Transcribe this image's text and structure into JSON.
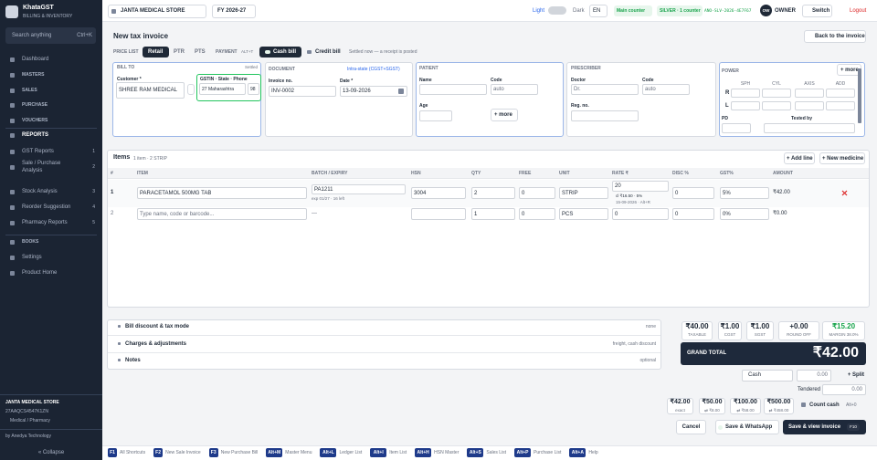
{
  "sidebar": {
    "brand": "KhataGST",
    "tagline": "BILLING & INVENTORY",
    "search": "Search anything",
    "search_shortcut": "Ctrl+K",
    "nav": [
      {
        "label": "Dashboard"
      },
      {
        "label": "MASTERS"
      },
      {
        "label": "SALES"
      },
      {
        "label": "PURCHASE"
      },
      {
        "label": "VOUCHERS"
      },
      {
        "label": "REPORTS"
      },
      {
        "label": "GST Reports",
        "key": "1"
      },
      {
        "label": "Sale / Purchase Analysis",
        "key": "2"
      },
      {
        "label": "Stock Analysis",
        "key": "3"
      },
      {
        "label": "Reorder Suggestion",
        "key": "4"
      },
      {
        "label": "Pharmacy Reports",
        "key": "5"
      },
      {
        "label": "BOOKS"
      },
      {
        "label": "Settings"
      },
      {
        "label": "Product Home"
      }
    ],
    "store_name": "JANTA MEDICAL STORE",
    "store_gstin": "27AAQCS4547K1ZN",
    "store_type": "Medical / Pharmacy",
    "credit": "by Anedya Technology",
    "collapse": "« Collapse"
  },
  "topbar": {
    "store": "JANTA MEDICAL STORE",
    "fy": "FY 2026-27",
    "theme_light": "Light",
    "theme_dark": "Dark",
    "language": "EN",
    "counter": "Main counter",
    "plan": "SILVER · 1 counter",
    "license": "ANO-SLV-2026-4E7F67",
    "avatar": "OW",
    "role": "OWNER",
    "switch": "Switch",
    "logout": "Logout"
  },
  "invoice": {
    "title": "New tax invoice",
    "back": "Back to the invoice",
    "price_list_label": "PRICE LIST",
    "price_lists": [
      "Retail",
      "PTR",
      "PTS"
    ],
    "payment_label": "PAYMENT",
    "payment_shortcut": "ALT+T",
    "payment_modes": [
      "Cash bill",
      "Credit bill"
    ],
    "payment_note": "Settled now — a receipt is posted"
  },
  "bill_to": {
    "title": "BILL TO",
    "status": "Settled",
    "customer_label": "Customer *",
    "customer": "SHREE RAM MEDICAL",
    "gstin_label": "GSTIN · State · Phone",
    "state": "27 Maharashtra",
    "phone": "98"
  },
  "document": {
    "title": "DOCUMENT",
    "tax_mode": "Intra-state (CGST+SGST)",
    "number_label": "Invoice no.",
    "number": "INV-0002",
    "date_label": "Date *",
    "date": "13-09-2026"
  },
  "patient": {
    "title": "PATIENT",
    "name_label": "Name",
    "code_label": "Code",
    "code_placeholder": "auto",
    "age_label": "Age",
    "more": "+ more"
  },
  "prescriber": {
    "title": "PRESCRIBER",
    "doctor_label": "Doctor",
    "doctor_placeholder": "Dr.",
    "code_label": "Code",
    "code_placeholder": "auto",
    "reg_label": "Reg. no."
  },
  "power": {
    "title": "POWER",
    "more": "+ more",
    "columns": [
      "SPH",
      "CYL",
      "AXIS",
      "ADD"
    ],
    "rows": [
      "R",
      "L"
    ],
    "pd_label": "PD",
    "tested_label": "Tested by"
  },
  "items": {
    "title": "Items",
    "summary": "1 item · 2 STRIP",
    "add_line": "+ Add line",
    "new_medicine": "+ New medicine",
    "columns": [
      "#",
      "ITEM",
      "BATCH / EXPIRY",
      "HSN",
      "QTY",
      "FREE",
      "UNIT",
      "RATE ₹",
      "DISC %",
      "GST%",
      "AMOUNT"
    ],
    "rows": [
      {
        "no": "1",
        "item": "PARACETAMOL 500MG TAB",
        "batch": "PA1211",
        "expiry": "exp 01/27 · 16 left",
        "hsn": "3004",
        "qty": "2",
        "free": "0",
        "unit": "STRIP",
        "rate": "20",
        "cost": "cl ₹16.50 · 5%",
        "rate_note": "15-09-2026 · Alt+R",
        "disc": "0",
        "gst": "5%",
        "amount": "₹42.00"
      },
      {
        "no": "2",
        "item_placeholder": "Type name, code or barcode...",
        "batch": "—",
        "qty": "1",
        "free": "0",
        "unit": "PCS",
        "rate": "0",
        "disc": "0",
        "gst": "0%",
        "amount": "₹0.00"
      }
    ]
  },
  "adjustments": [
    {
      "label": "Bill discount & tax mode",
      "hint": "none"
    },
    {
      "label": "Charges & adjustments",
      "hint": "freight, cash discount"
    },
    {
      "label": "Notes",
      "hint": "optional"
    }
  ],
  "totals": {
    "cells": [
      {
        "value": "₹40.00",
        "label": "TAXABLE"
      },
      {
        "value": "₹1.00",
        "label": "CGST"
      },
      {
        "value": "₹1.00",
        "label": "SGST"
      },
      {
        "value": "+0.00",
        "label": "ROUND OFF"
      },
      {
        "value": "₹15.20",
        "label": "MARGIN 38.0%"
      }
    ],
    "grand_label": "GRAND TOTAL",
    "grand_value": "₹42.00",
    "mode": "Cash",
    "amount": "0.00",
    "split": "+ Split",
    "tendered_label": "Tendered",
    "tendered": "0.00",
    "quick": [
      {
        "amount": "₹42.00",
        "note": "exact"
      },
      {
        "amount": "₹50.00",
        "note": "⇄ ₹8.00"
      },
      {
        "amount": "₹100.00",
        "note": "⇄ ₹58.00"
      },
      {
        "amount": "₹500.00",
        "note": "⇄ ₹458.00"
      }
    ],
    "count_cash": "Count cash",
    "count_shortcut": "Alt+0",
    "cancel": "Cancel",
    "whatsapp": "Save & WhatsApp",
    "save": "Save & view invoice",
    "save_shortcut": "F10"
  },
  "shortcuts": [
    {
      "key": "F1",
      "label": "All Shortcuts"
    },
    {
      "key": "F2",
      "label": "New Sale Invoice"
    },
    {
      "key": "F3",
      "label": "New Purchase Bill"
    },
    {
      "key": "Alt+M",
      "label": "Master Menu"
    },
    {
      "key": "Alt+L",
      "label": "Ledger List"
    },
    {
      "key": "Alt+I",
      "label": "Item List"
    },
    {
      "key": "Alt+H",
      "label": "HSN Master"
    },
    {
      "key": "Alt+S",
      "label": "Sales List"
    },
    {
      "key": "Alt+P",
      "label": "Purchase List"
    },
    {
      "key": "Alt+A",
      "label": "Help"
    }
  ]
}
